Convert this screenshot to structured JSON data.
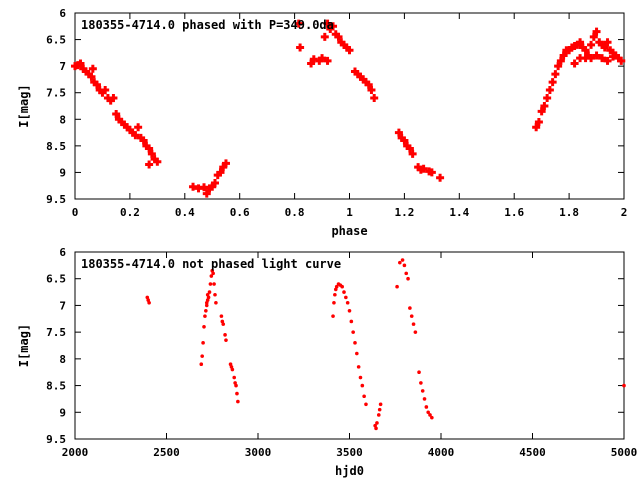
{
  "colors": {
    "points": "#ff0000",
    "axes": "#000000",
    "background": "#ffffff"
  },
  "chart_data": [
    {
      "type": "scatter",
      "title": "180355-4714.0 phased with P=349.0da",
      "xlabel": "phase",
      "ylabel": "I[mag]",
      "xlim": [
        0,
        2
      ],
      "ylim": [
        9.5,
        6
      ],
      "y_inverted": true,
      "grid": false,
      "marker": "filled-plus",
      "x_ticks": [
        "0",
        "0.2",
        "0.4",
        "0.6",
        "0.8",
        "1",
        "1.2",
        "1.4",
        "1.6",
        "1.8",
        "2"
      ],
      "y_ticks": [
        "6",
        "6.5",
        "7",
        "7.5",
        "8",
        "8.5",
        "9",
        "9.5"
      ],
      "series": [
        {
          "points": [
            [
              0.0,
              7.0
            ],
            [
              0.01,
              6.98
            ],
            [
              0.02,
              6.95
            ],
            [
              0.03,
              7.05
            ],
            [
              0.04,
              7.1
            ],
            [
              0.05,
              7.15
            ],
            [
              0.06,
              7.2
            ],
            [
              0.065,
              7.05
            ],
            [
              0.07,
              7.3
            ],
            [
              0.08,
              7.35
            ],
            [
              0.09,
              7.45
            ],
            [
              0.1,
              7.5
            ],
            [
              0.11,
              7.45
            ],
            [
              0.12,
              7.6
            ],
            [
              0.13,
              7.65
            ],
            [
              0.14,
              7.6
            ],
            [
              0.15,
              7.9
            ],
            [
              0.16,
              8.0
            ],
            [
              0.17,
              8.05
            ],
            [
              0.18,
              8.1
            ],
            [
              0.19,
              8.15
            ],
            [
              0.2,
              8.2
            ],
            [
              0.21,
              8.25
            ],
            [
              0.22,
              8.3
            ],
            [
              0.23,
              8.15
            ],
            [
              0.24,
              8.35
            ],
            [
              0.25,
              8.4
            ],
            [
              0.26,
              8.5
            ],
            [
              0.27,
              8.55
            ],
            [
              0.28,
              8.65
            ],
            [
              0.29,
              8.75
            ],
            [
              0.3,
              8.8
            ],
            [
              0.27,
              8.85
            ],
            [
              0.43,
              9.27
            ],
            [
              0.45,
              9.3
            ],
            [
              0.47,
              9.28
            ],
            [
              0.48,
              9.4
            ],
            [
              0.49,
              9.3
            ],
            [
              0.5,
              9.27
            ],
            [
              0.51,
              9.2
            ],
            [
              0.52,
              9.05
            ],
            [
              0.53,
              9.0
            ],
            [
              0.54,
              8.9
            ],
            [
              0.55,
              8.83
            ],
            [
              0.815,
              6.2
            ],
            [
              0.82,
              6.65
            ],
            [
              0.86,
              6.95
            ],
            [
              0.87,
              6.87
            ],
            [
              0.89,
              6.9
            ],
            [
              0.91,
              6.45
            ],
            [
              0.92,
              6.2
            ],
            [
              0.93,
              6.3
            ],
            [
              0.94,
              6.25
            ],
            [
              0.95,
              6.4
            ],
            [
              0.96,
              6.45
            ],
            [
              0.97,
              6.55
            ],
            [
              0.98,
              6.6
            ],
            [
              0.99,
              6.65
            ],
            [
              1.0,
              6.7
            ],
            [
              0.9,
              6.85
            ],
            [
              0.92,
              6.9
            ],
            [
              1.02,
              7.1
            ],
            [
              1.03,
              7.15
            ],
            [
              1.04,
              7.2
            ],
            [
              1.05,
              7.25
            ],
            [
              1.06,
              7.3
            ],
            [
              1.07,
              7.35
            ],
            [
              1.08,
              7.45
            ],
            [
              1.09,
              7.6
            ],
            [
              1.18,
              8.25
            ],
            [
              1.19,
              8.35
            ],
            [
              1.2,
              8.4
            ],
            [
              1.21,
              8.5
            ],
            [
              1.22,
              8.55
            ],
            [
              1.23,
              8.65
            ],
            [
              1.25,
              8.9
            ],
            [
              1.26,
              8.95
            ],
            [
              1.27,
              8.93
            ],
            [
              1.29,
              8.98
            ],
            [
              1.3,
              9.0
            ],
            [
              1.33,
              9.1
            ],
            [
              1.68,
              8.15
            ],
            [
              1.69,
              8.05
            ],
            [
              1.7,
              7.85
            ],
            [
              1.71,
              7.75
            ],
            [
              1.72,
              7.6
            ],
            [
              1.73,
              7.45
            ],
            [
              1.74,
              7.3
            ],
            [
              1.75,
              7.15
            ],
            [
              1.76,
              7.0
            ],
            [
              1.77,
              6.9
            ],
            [
              1.78,
              6.8
            ],
            [
              1.79,
              6.7
            ],
            [
              1.8,
              6.7
            ],
            [
              1.81,
              6.65
            ],
            [
              1.82,
              6.62
            ],
            [
              1.83,
              6.6
            ],
            [
              1.84,
              6.55
            ],
            [
              1.85,
              6.65
            ],
            [
              1.86,
              6.7
            ],
            [
              1.87,
              6.8
            ],
            [
              1.88,
              6.6
            ],
            [
              1.89,
              6.45
            ],
            [
              1.9,
              6.35
            ],
            [
              1.91,
              6.55
            ],
            [
              1.92,
              6.6
            ],
            [
              1.93,
              6.65
            ],
            [
              1.94,
              6.55
            ],
            [
              1.95,
              6.7
            ],
            [
              1.96,
              6.75
            ],
            [
              1.97,
              6.8
            ],
            [
              1.98,
              6.85
            ],
            [
              1.99,
              6.9
            ],
            [
              1.82,
              6.95
            ],
            [
              1.84,
              6.85
            ],
            [
              1.86,
              6.85
            ],
            [
              1.88,
              6.85
            ],
            [
              1.9,
              6.8
            ],
            [
              1.92,
              6.85
            ],
            [
              1.94,
              6.9
            ],
            [
              1.96,
              6.82
            ]
          ]
        }
      ]
    },
    {
      "type": "scatter",
      "title": "180355-4714.0 not phased light curve",
      "xlabel": "hjd0",
      "ylabel": "I[mag]",
      "xlim": [
        2000,
        5000
      ],
      "ylim": [
        9.5,
        6
      ],
      "y_inverted": true,
      "grid": false,
      "marker": "dot",
      "x_ticks": [
        "2000",
        "2500",
        "3000",
        "3500",
        "4000",
        "4500",
        "5000"
      ],
      "y_ticks": [
        "6",
        "6.5",
        "7",
        "7.5",
        "8",
        "8.5",
        "9",
        "9.5"
      ],
      "series": [
        {
          "points": [
            [
              2395,
              6.85
            ],
            [
              2400,
              6.9
            ],
            [
              2405,
              6.95
            ],
            [
              2690,
              8.1
            ],
            [
              2695,
              7.95
            ],
            [
              2700,
              7.7
            ],
            [
              2705,
              7.4
            ],
            [
              2710,
              7.2
            ],
            [
              2715,
              7.1
            ],
            [
              2720,
              6.95
            ],
            [
              2725,
              6.9
            ],
            [
              2730,
              6.85
            ],
            [
              2735,
              6.75
            ],
            [
              2740,
              6.6
            ],
            [
              2745,
              6.45
            ],
            [
              2750,
              6.35
            ],
            [
              2755,
              6.4
            ],
            [
              2760,
              6.6
            ],
            [
              2765,
              6.8
            ],
            [
              2770,
              6.95
            ],
            [
              2720,
              7.0
            ],
            [
              2725,
              6.8
            ],
            [
              2800,
              7.2
            ],
            [
              2805,
              7.3
            ],
            [
              2810,
              7.35
            ],
            [
              2820,
              7.55
            ],
            [
              2825,
              7.65
            ],
            [
              2850,
              8.1
            ],
            [
              2855,
              8.15
            ],
            [
              2860,
              8.2
            ],
            [
              2870,
              8.35
            ],
            [
              2875,
              8.45
            ],
            [
              2880,
              8.5
            ],
            [
              2885,
              8.65
            ],
            [
              2890,
              8.8
            ],
            [
              3410,
              7.2
            ],
            [
              3415,
              6.95
            ],
            [
              3420,
              6.8
            ],
            [
              3425,
              6.7
            ],
            [
              3430,
              6.65
            ],
            [
              3440,
              6.6
            ],
            [
              3450,
              6.62
            ],
            [
              3460,
              6.65
            ],
            [
              3470,
              6.75
            ],
            [
              3480,
              6.85
            ],
            [
              3490,
              6.95
            ],
            [
              3500,
              7.1
            ],
            [
              3510,
              7.3
            ],
            [
              3520,
              7.5
            ],
            [
              3530,
              7.7
            ],
            [
              3540,
              7.9
            ],
            [
              3550,
              8.15
            ],
            [
              3560,
              8.35
            ],
            [
              3570,
              8.5
            ],
            [
              3580,
              8.7
            ],
            [
              3590,
              8.85
            ],
            [
              3640,
              9.25
            ],
            [
              3645,
              9.3
            ],
            [
              3650,
              9.2
            ],
            [
              3660,
              9.05
            ],
            [
              3665,
              8.95
            ],
            [
              3670,
              8.85
            ],
            [
              3760,
              6.65
            ],
            [
              3775,
              6.2
            ],
            [
              3790,
              6.15
            ],
            [
              3800,
              6.25
            ],
            [
              3810,
              6.4
            ],
            [
              3820,
              6.5
            ],
            [
              3830,
              7.05
            ],
            [
              3840,
              7.2
            ],
            [
              3850,
              7.35
            ],
            [
              3860,
              7.5
            ],
            [
              3880,
              8.25
            ],
            [
              3890,
              8.45
            ],
            [
              3900,
              8.6
            ],
            [
              3910,
              8.75
            ],
            [
              3920,
              8.9
            ],
            [
              3930,
              9.0
            ],
            [
              3940,
              9.05
            ],
            [
              3950,
              9.1
            ],
            [
              5000,
              8.5
            ]
          ]
        }
      ]
    }
  ]
}
